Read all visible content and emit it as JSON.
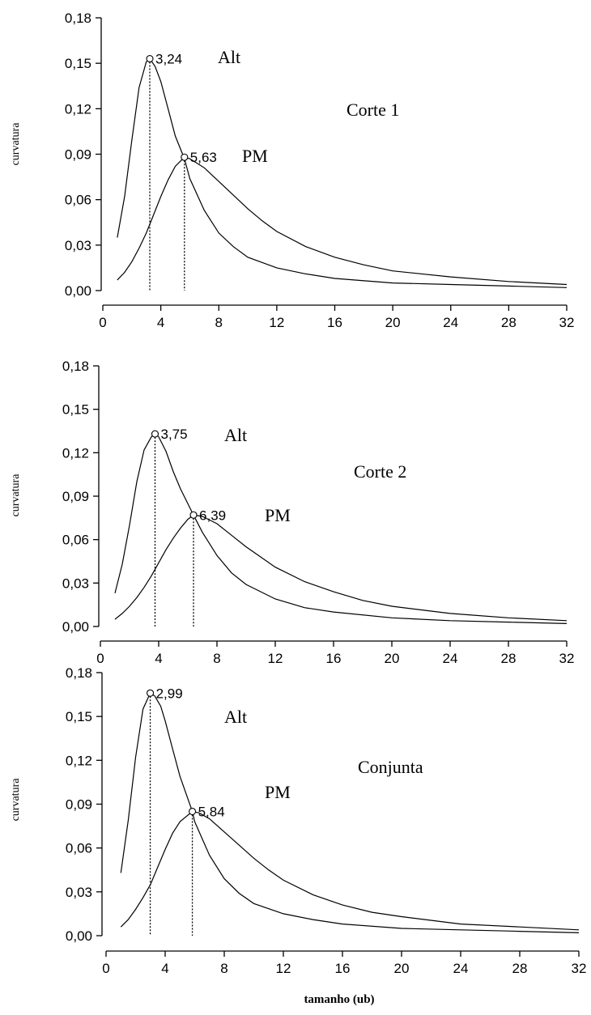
{
  "chart_data": [
    {
      "type": "line",
      "title": "Corte 1",
      "ylabel": "curvatura",
      "xlabel": "",
      "xlim": [
        0,
        32
      ],
      "ylim": [
        0,
        0.18
      ],
      "x_ticks": [
        "0",
        "4",
        "8",
        "12",
        "16",
        "20",
        "24",
        "28",
        "32"
      ],
      "y_ticks": [
        "0,00",
        "0,03",
        "0,06",
        "0,09",
        "0,12",
        "0,15",
        "0,18"
      ],
      "grid": false,
      "series": [
        {
          "name": "Alt",
          "peak_x": 3.24,
          "peak_y": 0.153,
          "peak_label": "3,24",
          "points": [
            [
              1,
              0.035
            ],
            [
              1.5,
              0.062
            ],
            [
              2,
              0.099
            ],
            [
              2.5,
              0.134
            ],
            [
              3,
              0.151
            ],
            [
              3.24,
              0.153
            ],
            [
              3.6,
              0.148
            ],
            [
              4,
              0.138
            ],
            [
              4.5,
              0.12
            ],
            [
              5,
              0.102
            ],
            [
              5.63,
              0.087
            ],
            [
              6,
              0.074
            ],
            [
              7,
              0.053
            ],
            [
              8,
              0.038
            ],
            [
              9,
              0.029
            ],
            [
              10,
              0.022
            ],
            [
              12,
              0.015
            ],
            [
              14,
              0.011
            ],
            [
              16,
              0.008
            ],
            [
              20,
              0.005
            ],
            [
              24,
              0.004
            ],
            [
              28,
              0.003
            ],
            [
              32,
              0.002
            ]
          ]
        },
        {
          "name": "PM",
          "peak_x": 5.63,
          "peak_y": 0.088,
          "peak_label": "5,63",
          "points": [
            [
              1,
              0.007
            ],
            [
              1.5,
              0.012
            ],
            [
              2,
              0.019
            ],
            [
              2.5,
              0.028
            ],
            [
              3,
              0.038
            ],
            [
              3.5,
              0.05
            ],
            [
              4,
              0.062
            ],
            [
              4.5,
              0.073
            ],
            [
              5,
              0.082
            ],
            [
              5.63,
              0.088
            ],
            [
              6,
              0.087
            ],
            [
              7,
              0.081
            ],
            [
              8,
              0.072
            ],
            [
              9,
              0.063
            ],
            [
              10,
              0.054
            ],
            [
              11,
              0.046
            ],
            [
              12,
              0.039
            ],
            [
              14,
              0.029
            ],
            [
              16,
              0.022
            ],
            [
              18,
              0.017
            ],
            [
              20,
              0.013
            ],
            [
              24,
              0.009
            ],
            [
              28,
              0.006
            ],
            [
              32,
              0.004
            ]
          ]
        }
      ]
    },
    {
      "type": "line",
      "title": "Corte 2",
      "ylabel": "curvatura",
      "xlabel": "",
      "xlim": [
        0,
        32
      ],
      "ylim": [
        0,
        0.18
      ],
      "x_ticks": [
        "0",
        "4",
        "8",
        "12",
        "16",
        "20",
        "24",
        "28",
        "32"
      ],
      "y_ticks": [
        "0,00",
        "0,03",
        "0,06",
        "0,09",
        "0,12",
        "0,15",
        "0,18"
      ],
      "grid": false,
      "series": [
        {
          "name": "Alt",
          "peak_x": 3.75,
          "peak_y": 0.133,
          "peak_label": "3,75",
          "points": [
            [
              1,
              0.023
            ],
            [
              1.5,
              0.043
            ],
            [
              2,
              0.07
            ],
            [
              2.5,
              0.1
            ],
            [
              3,
              0.122
            ],
            [
              3.5,
              0.131
            ],
            [
              3.75,
              0.133
            ],
            [
              4,
              0.131
            ],
            [
              4.5,
              0.121
            ],
            [
              5,
              0.107
            ],
            [
              5.5,
              0.095
            ],
            [
              6.39,
              0.077
            ],
            [
              7,
              0.065
            ],
            [
              8,
              0.049
            ],
            [
              9,
              0.037
            ],
            [
              10,
              0.029
            ],
            [
              12,
              0.019
            ],
            [
              14,
              0.013
            ],
            [
              16,
              0.01
            ],
            [
              20,
              0.006
            ],
            [
              24,
              0.004
            ],
            [
              28,
              0.003
            ],
            [
              32,
              0.002
            ]
          ]
        },
        {
          "name": "PM",
          "peak_x": 6.39,
          "peak_y": 0.077,
          "peak_label": "6,39",
          "points": [
            [
              1,
              0.005
            ],
            [
              1.5,
              0.009
            ],
            [
              2,
              0.014
            ],
            [
              2.5,
              0.02
            ],
            [
              3,
              0.027
            ],
            [
              3.5,
              0.035
            ],
            [
              4,
              0.044
            ],
            [
              4.5,
              0.053
            ],
            [
              5,
              0.061
            ],
            [
              5.5,
              0.068
            ],
            [
              6,
              0.074
            ],
            [
              6.39,
              0.077
            ],
            [
              7,
              0.076
            ],
            [
              8,
              0.071
            ],
            [
              9,
              0.063
            ],
            [
              10,
              0.055
            ],
            [
              11,
              0.048
            ],
            [
              12,
              0.041
            ],
            [
              14,
              0.031
            ],
            [
              16,
              0.024
            ],
            [
              18,
              0.018
            ],
            [
              20,
              0.014
            ],
            [
              24,
              0.009
            ],
            [
              28,
              0.006
            ],
            [
              32,
              0.004
            ]
          ]
        }
      ]
    },
    {
      "type": "line",
      "title": "Conjunta",
      "ylabel": "curvatura",
      "xlabel": "tamanho (ub)",
      "xlim": [
        0,
        32
      ],
      "ylim": [
        0,
        0.18
      ],
      "x_ticks": [
        "0",
        "4",
        "8",
        "12",
        "16",
        "20",
        "24",
        "28",
        "32"
      ],
      "y_ticks": [
        "0,00",
        "0,03",
        "0,06",
        "0,09",
        "0,12",
        "0,15",
        "0,18"
      ],
      "grid": false,
      "series": [
        {
          "name": "Alt",
          "peak_x": 2.99,
          "peak_y": 0.166,
          "peak_label": "2,99",
          "points": [
            [
              1,
              0.043
            ],
            [
              1.5,
              0.079
            ],
            [
              2,
              0.122
            ],
            [
              2.5,
              0.155
            ],
            [
              2.99,
              0.166
            ],
            [
              3.3,
              0.164
            ],
            [
              3.7,
              0.157
            ],
            [
              4,
              0.147
            ],
            [
              4.5,
              0.128
            ],
            [
              5,
              0.109
            ],
            [
              5.84,
              0.085
            ],
            [
              6,
              0.078
            ],
            [
              7,
              0.055
            ],
            [
              8,
              0.039
            ],
            [
              9,
              0.029
            ],
            [
              10,
              0.022
            ],
            [
              12,
              0.015
            ],
            [
              14,
              0.011
            ],
            [
              16,
              0.008
            ],
            [
              20,
              0.005
            ],
            [
              24,
              0.004
            ],
            [
              28,
              0.003
            ],
            [
              32,
              0.002
            ]
          ]
        },
        {
          "name": "PM",
          "peak_x": 5.84,
          "peak_y": 0.085,
          "peak_label": "5,84",
          "points": [
            [
              1,
              0.006
            ],
            [
              1.5,
              0.011
            ],
            [
              2,
              0.018
            ],
            [
              2.5,
              0.026
            ],
            [
              3,
              0.035
            ],
            [
              3.5,
              0.047
            ],
            [
              4,
              0.059
            ],
            [
              4.5,
              0.07
            ],
            [
              5,
              0.078
            ],
            [
              5.84,
              0.085
            ],
            [
              6.3,
              0.084
            ],
            [
              7,
              0.08
            ],
            [
              8,
              0.071
            ],
            [
              9,
              0.062
            ],
            [
              10,
              0.053
            ],
            [
              11,
              0.045
            ],
            [
              12,
              0.038
            ],
            [
              14,
              0.028
            ],
            [
              16,
              0.021
            ],
            [
              18,
              0.016
            ],
            [
              20,
              0.013
            ],
            [
              24,
              0.008
            ],
            [
              28,
              0.006
            ],
            [
              32,
              0.004
            ]
          ]
        }
      ]
    }
  ]
}
